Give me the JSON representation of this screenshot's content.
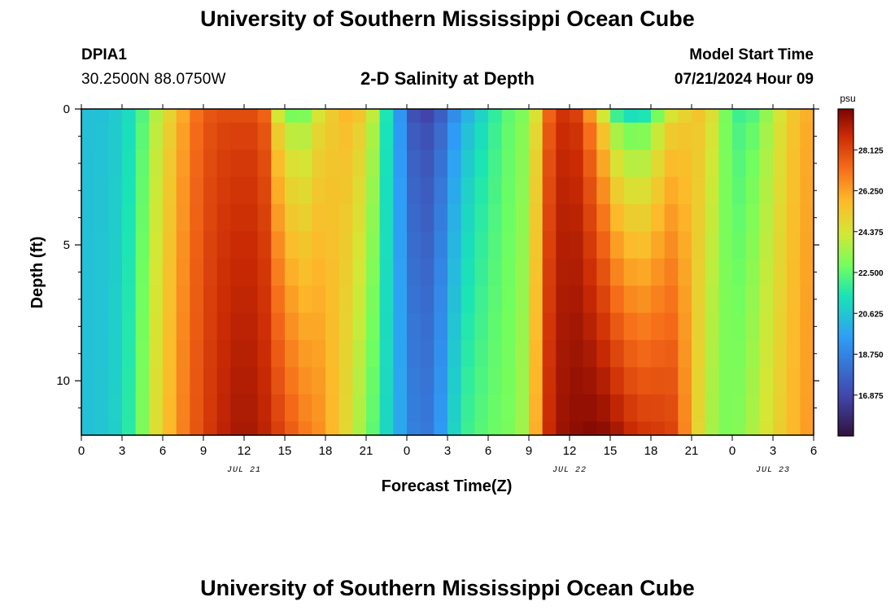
{
  "header": {
    "title": "University of Southern Mississippi Ocean Cube",
    "station": "DPIA1",
    "coordinates": "30.2500N  88.0750W",
    "plot_title": "2-D Salinity at Depth",
    "start_label": "Model Start Time",
    "start_value": "07/21/2024 Hour 09"
  },
  "footer": {
    "title": "University of Southern Mississippi Ocean Cube"
  },
  "chart_data": {
    "type": "heatmap",
    "title": "2-D Salinity at Depth",
    "xlabel": "Forecast Time(Z)",
    "ylabel": "Depth (ft)",
    "x_range_hours": [
      0,
      54
    ],
    "x_tick_labels": [
      "0",
      "3",
      "6",
      "9",
      "12",
      "15",
      "18",
      "21",
      "0",
      "3",
      "6",
      "9",
      "12",
      "15",
      "18",
      "21",
      "0",
      "3",
      "6"
    ],
    "x_tick_step_hours": 3,
    "date_labels": [
      {
        "label": "JUL 21",
        "hour": 12
      },
      {
        "label": "JUL 22",
        "hour": 36
      },
      {
        "label": "JUL 23",
        "hour": 51
      }
    ],
    "y_range_ft": [
      0,
      12
    ],
    "y_tick_labels": [
      "0",
      "5",
      "10"
    ],
    "y_ticks_ft": [
      0,
      5,
      10
    ],
    "y_minor_ticks_ft": [
      1,
      2,
      3,
      4,
      6,
      7,
      8,
      9,
      11
    ],
    "depth_levels_ft": [
      0,
      1,
      2,
      3,
      4,
      5,
      6,
      7,
      8,
      9,
      10,
      11,
      12
    ],
    "colorbar": {
      "unit": "psu",
      "range": [
        15.0,
        30.0
      ],
      "tick_labels": [
        "28.125",
        "26.250",
        "24.375",
        "22.500",
        "20.625",
        "18.750",
        "16.875"
      ],
      "tick_values": [
        28.125,
        26.25,
        24.375,
        22.5,
        20.625,
        18.75,
        16.875
      ]
    },
    "surface_salinity_psu": [
      20.5,
      20.5,
      20.7,
      21.2,
      22.3,
      23.8,
      25.0,
      26.1,
      27.2,
      27.8,
      28.0,
      28.0,
      28.0,
      27.5,
      24.3,
      22.9,
      23.0,
      24.4,
      25.2,
      25.8,
      25.4,
      24.0,
      21.5,
      19.3,
      17.2,
      16.8,
      17.6,
      19.0,
      20.1,
      21.0,
      21.8,
      22.5,
      23.0,
      24.5,
      27.5,
      28.6,
      28.3,
      26.5,
      24.3,
      22.0,
      21.3,
      21.5,
      22.9,
      24.4,
      25.0,
      25.4,
      24.6,
      22.9,
      22.0,
      22.3,
      23.3,
      24.4,
      25.4,
      26.0
    ],
    "bottom_salinity_psu": [
      20.5,
      20.6,
      20.9,
      21.7,
      23.0,
      24.6,
      25.8,
      26.9,
      27.8,
      28.5,
      29.0,
      29.3,
      29.3,
      29.0,
      28.3,
      27.6,
      27.0,
      26.6,
      25.8,
      24.8,
      23.7,
      22.5,
      21.1,
      19.8,
      18.6,
      18.4,
      19.4,
      21.0,
      22.0,
      22.4,
      22.7,
      22.9,
      23.5,
      26.0,
      28.8,
      29.5,
      29.7,
      29.8,
      29.7,
      29.3,
      28.8,
      28.5,
      28.4,
      28.2,
      26.8,
      24.9,
      23.6,
      23.0,
      23.1,
      23.7,
      24.4,
      25.1,
      25.8,
      26.3
    ]
  }
}
